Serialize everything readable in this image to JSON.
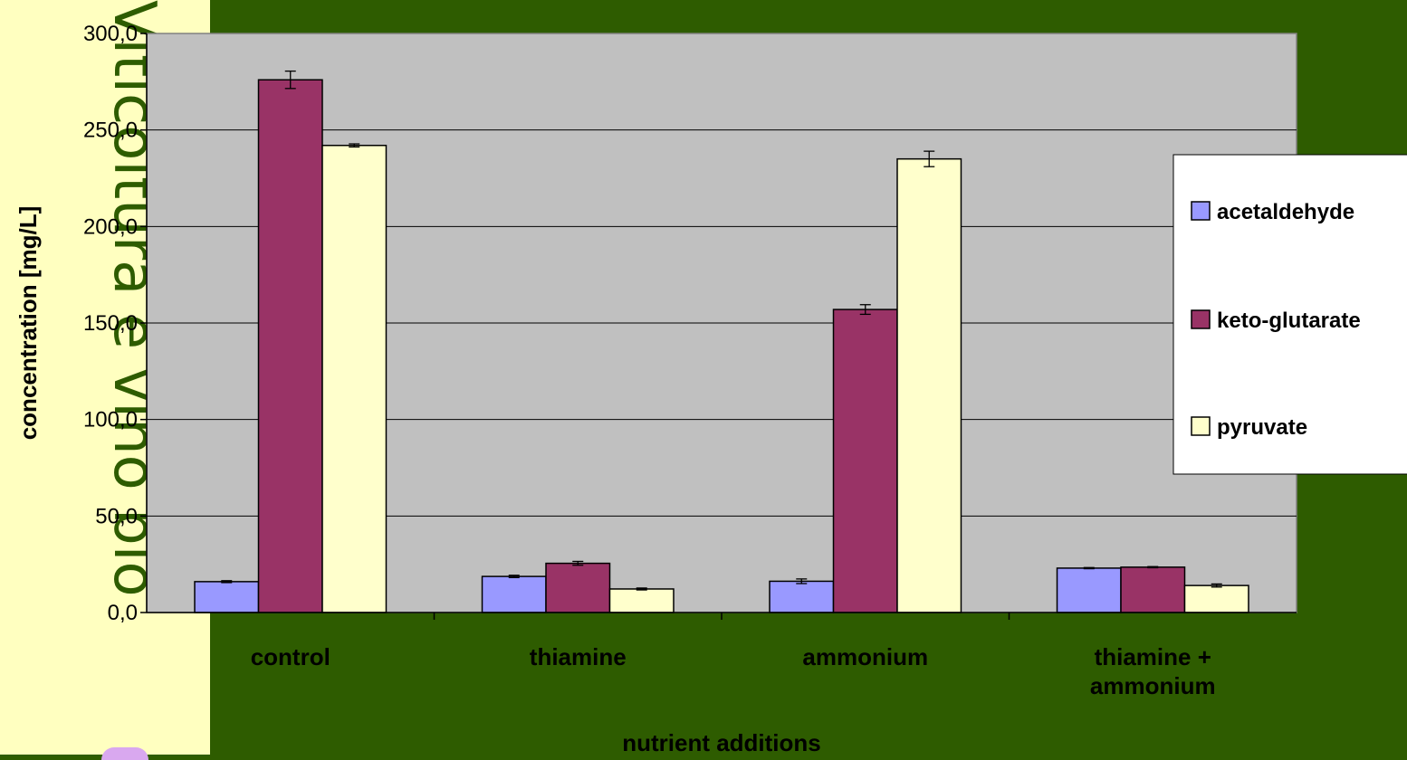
{
  "watermark": "Viticoltura e vino bio",
  "chart_data": {
    "type": "bar",
    "title": "",
    "xlabel": "nutrient additions",
    "ylabel": "concentration [mg/L]",
    "ylim": [
      0,
      300
    ],
    "yticks": [
      "0,0",
      "50,0",
      "100,0",
      "150,0",
      "200,0",
      "250,0",
      "300,0"
    ],
    "grid": true,
    "legend_position": "right",
    "categories": [
      [
        "control"
      ],
      [
        "thiamine"
      ],
      [
        "ammonium"
      ],
      [
        "thiamine +",
        "ammonium"
      ]
    ],
    "series": [
      {
        "name": "acetaldehyde",
        "color": "#9999ff",
        "values": [
          16.0,
          18.7,
          16.2,
          23.0
        ],
        "errors": [
          0.5,
          0.6,
          1.2,
          0.3
        ]
      },
      {
        "name": "keto-glutarate",
        "color": "#993366",
        "values": [
          276.0,
          25.5,
          157.0,
          23.5
        ],
        "errors": [
          4.5,
          1.0,
          2.5,
          0.3
        ]
      },
      {
        "name": "pyruvate",
        "color": "#ffffcc",
        "values": [
          242.0,
          12.2,
          235.0,
          14.0
        ],
        "errors": [
          0.8,
          0.5,
          4.0,
          0.8
        ]
      }
    ]
  }
}
